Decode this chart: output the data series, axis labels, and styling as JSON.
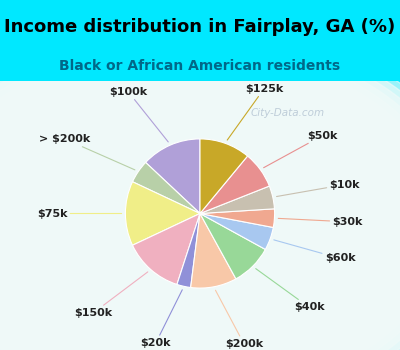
{
  "title": "Income distribution in Fairplay, GA (%)",
  "subtitle": "Black or African American residents",
  "watermark": "© City-Data.com",
  "labels": [
    "$100k",
    "> $200k",
    "$75k",
    "$150k",
    "$20k",
    "$200k",
    "$40k",
    "$60k",
    "$30k",
    "$10k",
    "$50k",
    "$125k"
  ],
  "values": [
    13,
    5,
    14,
    13,
    3,
    10,
    9,
    5,
    4,
    5,
    8,
    11
  ],
  "colors": [
    "#b0a0d8",
    "#b8d0a8",
    "#f0ee88",
    "#f0b0c0",
    "#9090d8",
    "#f8c8a8",
    "#98d898",
    "#a8c8f0",
    "#f0a890",
    "#c8c0b0",
    "#e89090",
    "#c8a828"
  ],
  "bg_color_top": "#00e8ff",
  "bg_color_chart_outer": "#b8e8d8",
  "bg_color_chart_inner": "#f0faf8",
  "startangle": 90,
  "title_fontsize": 13,
  "subtitle_fontsize": 10,
  "label_fontsize": 8,
  "subtitle_color": "#006888"
}
